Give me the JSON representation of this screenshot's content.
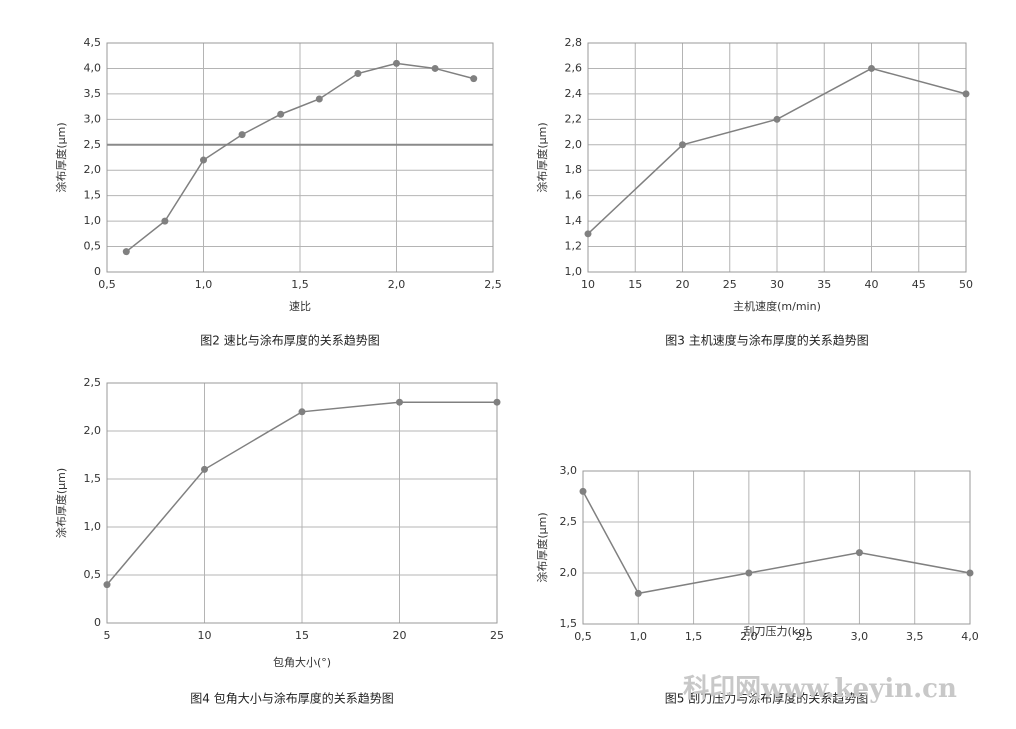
{
  "chart_data": [
    {
      "type": "line",
      "title": "图2 速比与涂布厚度的关系趋势图",
      "x_label": "速比",
      "y_label": "涂布厚度(μm)",
      "x": [
        0.6,
        0.8,
        1.0,
        1.2,
        1.4,
        1.6,
        1.8,
        2.0,
        2.2,
        2.4
      ],
      "values": [
        0.4,
        1.0,
        2.2,
        2.7,
        3.1,
        3.4,
        3.9,
        4.1,
        4.0,
        3.8
      ],
      "color": "#808080",
      "reference_line": 2.5,
      "xlim": [
        0.5,
        2.5
      ],
      "xticks": [
        {
          "value": 0.5,
          "label": "0,5"
        },
        {
          "value": 1.0,
          "label": "1,0"
        },
        {
          "value": 1.5,
          "label": "1,5"
        },
        {
          "value": 2.0,
          "label": "2,0"
        },
        {
          "value": 2.5,
          "label": "2,5"
        }
      ],
      "ylim": [
        0,
        4.5
      ],
      "yticks": [
        0,
        {
          "value": 0.5,
          "label": "0,5"
        },
        {
          "value": 1.0,
          "label": "1,0"
        },
        {
          "value": 1.5,
          "label": "1,5"
        },
        {
          "value": 2.0,
          "label": "2,0"
        },
        {
          "value": 2.5,
          "label": "2,5"
        },
        {
          "value": 3.0,
          "label": "3,0"
        },
        {
          "value": 3.5,
          "label": "3,5"
        },
        {
          "value": 4.0,
          "label": "4,0"
        },
        {
          "value": 4.5,
          "label": "4,5"
        }
      ],
      "grid": true
    },
    {
      "type": "line",
      "title": "图3 主机速度与涂布厚度的关系趋势图",
      "x_label": "主机速度(m/min)",
      "y_label": "涂布厚度(μm)",
      "x": [
        10,
        20,
        30,
        40,
        50
      ],
      "values": [
        1.3,
        2.0,
        2.2,
        2.6,
        2.4
      ],
      "color": "#808080",
      "xlim": [
        10,
        50
      ],
      "xticks": [
        10,
        15,
        20,
        25,
        30,
        35,
        40,
        45,
        50
      ],
      "ylim": [
        1.0,
        2.8
      ],
      "yticks": [
        {
          "value": 1.0,
          "label": "1,0"
        },
        {
          "value": 1.2,
          "label": "1,2"
        },
        {
          "value": 1.4,
          "label": "1,4"
        },
        {
          "value": 1.6,
          "label": "1,6"
        },
        {
          "value": 1.8,
          "label": "1,8"
        },
        {
          "value": 2.0,
          "label": "2,0"
        },
        {
          "value": 2.2,
          "label": "2,2"
        },
        {
          "value": 2.4,
          "label": "2,4"
        },
        {
          "value": 2.6,
          "label": "2,6"
        },
        {
          "value": 2.8,
          "label": "2,8"
        }
      ],
      "grid": true
    },
    {
      "type": "line",
      "title": "图4 包角大小与涂布厚度的关系趋势图",
      "x_label": "包角大小(°)",
      "y_label": "涂布厚度(μm)",
      "x": [
        5,
        10,
        15,
        20,
        25
      ],
      "values": [
        0.4,
        1.6,
        2.2,
        2.3,
        2.3
      ],
      "color": "#808080",
      "xlim": [
        5,
        25
      ],
      "xticks": [
        5,
        10,
        15,
        20,
        25
      ],
      "ylim": [
        0,
        2.5
      ],
      "yticks": [
        0,
        {
          "value": 0.5,
          "label": "0,5"
        },
        {
          "value": 1.0,
          "label": "1,0"
        },
        {
          "value": 1.5,
          "label": "1,5"
        },
        {
          "value": 2.0,
          "label": "2,0"
        },
        {
          "value": 2.5,
          "label": "2,5"
        }
      ],
      "grid": true
    },
    {
      "type": "line",
      "title": "图5 刮刀压力与涂布厚度的关系趋势图",
      "x_label": "刮刀压力(kg)",
      "y_label": "涂布厚度(μm)",
      "x": [
        0.5,
        1.0,
        2.0,
        3.0,
        4.0
      ],
      "values": [
        2.8,
        1.8,
        2.0,
        2.2,
        2.0
      ],
      "color": "#808080",
      "xlim": [
        0.5,
        4.0
      ],
      "xticks": [
        {
          "value": 0.5,
          "label": "0,5"
        },
        {
          "value": 1.0,
          "label": "1,0"
        },
        {
          "value": 1.5,
          "label": "1,5"
        },
        {
          "value": 2.0,
          "label": "2,0"
        },
        {
          "value": 2.5,
          "label": "2,5"
        },
        {
          "value": 3.0,
          "label": "3,0"
        },
        {
          "value": 3.5,
          "label": "3,5"
        },
        {
          "value": 4.0,
          "label": "4,0"
        }
      ],
      "ylim": [
        1.5,
        3.0
      ],
      "yticks": [
        {
          "value": 1.5,
          "label": "1,5"
        },
        {
          "value": 2.0,
          "label": "2,0"
        },
        {
          "value": 2.5,
          "label": "2,5"
        },
        {
          "value": 3.0,
          "label": "3,0"
        }
      ],
      "grid": true
    }
  ],
  "watermark": "科印网www.keyin.cn"
}
